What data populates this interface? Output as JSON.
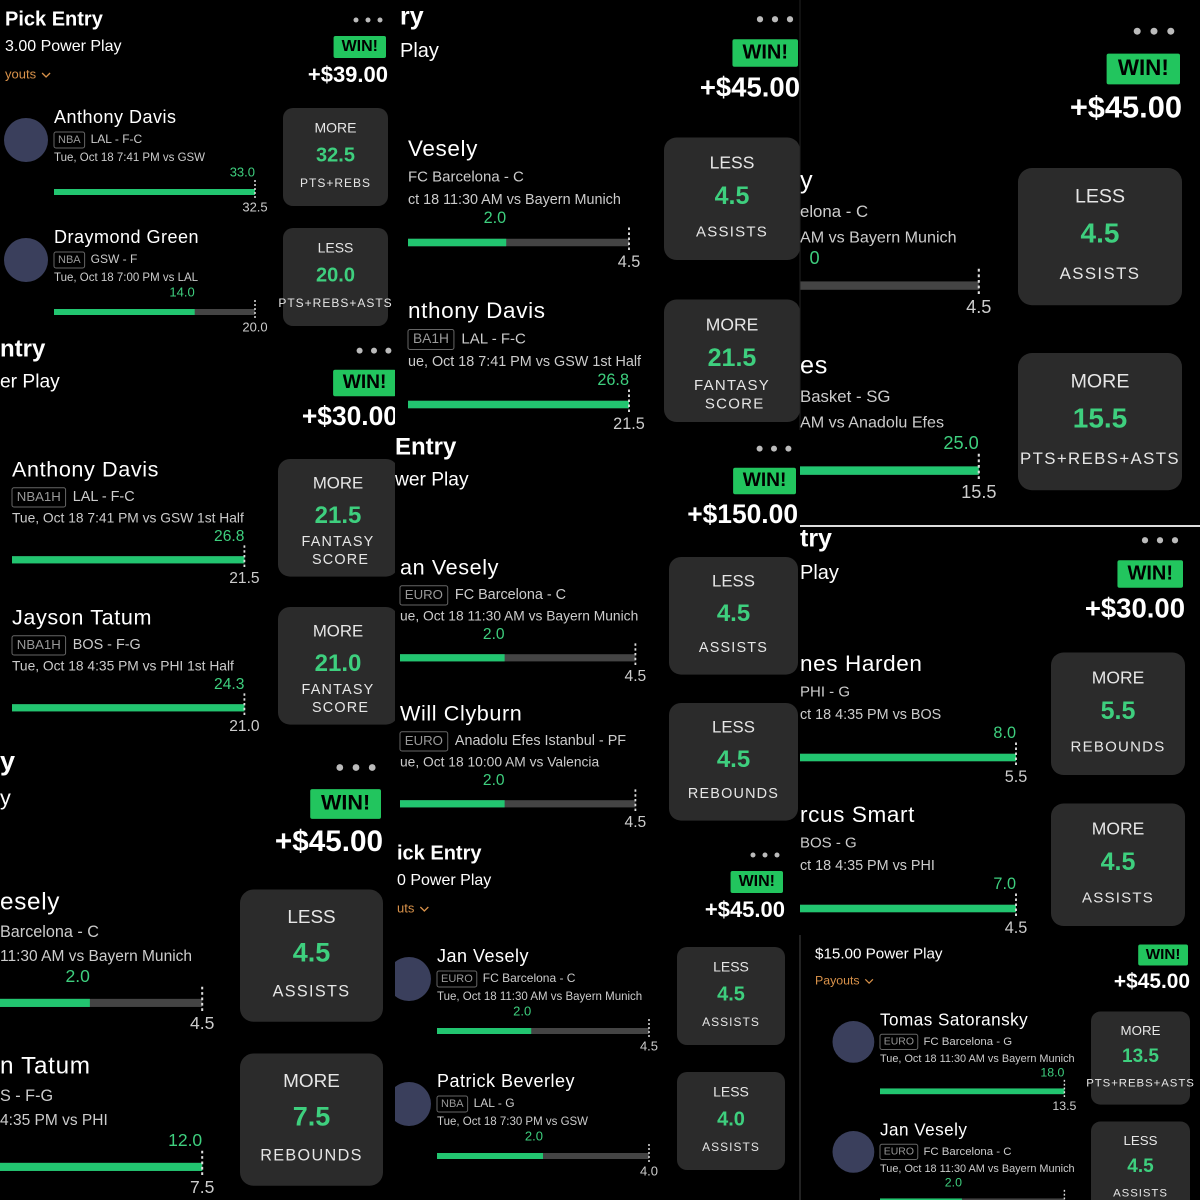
{
  "panels": [
    {
      "title": "Pick Entry",
      "subtitle": "3.00 Power Play",
      "payouts": "youts",
      "result": "WIN!",
      "amount": "+$39.00",
      "picks": [
        {
          "player": "Anthony Davis",
          "league": "NBA",
          "team": "LAL - F-C",
          "game": "Tue, Oct 18 7:41 PM vs GSW",
          "actual": 33,
          "actual_label": "33.0",
          "line": 32.5,
          "line_label": "32.5",
          "direction": "MORE",
          "stat": "PTS+REBS"
        },
        {
          "player": "Draymond Green",
          "league": "NBA",
          "team": "GSW - F",
          "game": "Tue, Oct 18 7:00 PM vs LAL",
          "actual": 14,
          "actual_label": "14.0",
          "line": 20,
          "line_label": "20.0",
          "direction": "LESS",
          "stat": "PTS+REBS+ASTS"
        }
      ]
    },
    {
      "title": "ntry",
      "subtitle": "er Play",
      "result": "WIN!",
      "amount": "+$30.00",
      "picks": [
        {
          "player": "Anthony Davis",
          "league": "NBA1H",
          "team": "LAL - F-C",
          "game": "Tue, Oct 18 7:41 PM vs GSW 1st Half",
          "actual": 26.8,
          "actual_label": "26.8",
          "line": 21.5,
          "line_label": "21.5",
          "direction": "MORE",
          "stat": "FANTASY SCORE"
        },
        {
          "player": "Jayson Tatum",
          "league": "NBA1H",
          "team": "BOS - F-G",
          "game": "Tue, Oct 18 4:35 PM vs PHI 1st Half",
          "actual": 24.3,
          "actual_label": "24.3",
          "line": 21,
          "line_label": "21.0",
          "direction": "MORE",
          "stat": "FANTASY SCORE"
        }
      ]
    },
    {
      "title": "y",
      "subtitle": "y",
      "result": "WIN!",
      "amount": "+$45.00",
      "picks": [
        {
          "player": "esely",
          "team": "Barcelona - C",
          "game": "11:30 AM vs Bayern Munich",
          "actual": 2,
          "actual_label": "2.0",
          "line": 4.5,
          "line_label": "4.5",
          "direction": "LESS",
          "stat": "ASSISTS"
        },
        {
          "player": "n Tatum",
          "team": "S - F-G",
          "game": "4:35 PM vs PHI",
          "actual": 12,
          "actual_label": "12.0",
          "line": 7.5,
          "line_label": "7.5",
          "direction": "MORE",
          "stat": "REBOUNDS"
        }
      ]
    },
    {
      "title": "ry",
      "subtitle": "Play",
      "result": "WIN!",
      "amount": "+$45.00",
      "picks": [
        {
          "player": "Vesely",
          "team": "FC Barcelona - C",
          "game": "ct 18 11:30 AM vs Bayern Munich",
          "actual": 2,
          "actual_label": "2.0",
          "line": 4.5,
          "line_label": "4.5",
          "direction": "LESS",
          "stat": "ASSISTS"
        },
        {
          "player": "nthony Davis",
          "league": "BA1H",
          "team": "LAL - F-C",
          "game": "ue, Oct 18 7:41 PM vs GSW 1st Half",
          "actual": 26.8,
          "actual_label": "26.8",
          "line": 21.5,
          "line_label": "21.5",
          "direction": "MORE",
          "stat": "FANTASY SCORE"
        }
      ]
    },
    {
      "title": "Entry",
      "subtitle": "wer Play",
      "result": "WIN!",
      "amount": "+$150.00",
      "picks": [
        {
          "player": "an Vesely",
          "league": "EURO",
          "team": "FC Barcelona - C",
          "game": "ue, Oct 18 11:30 AM vs Bayern Munich",
          "actual": 2,
          "actual_label": "2.0",
          "line": 4.5,
          "line_label": "4.5",
          "direction": "LESS",
          "stat": "ASSISTS"
        },
        {
          "player": "Will Clyburn",
          "league": "EURO",
          "team": "Anadolu Efes Istanbul - PF",
          "game": "ue, Oct 18 10:00 AM vs Valencia",
          "actual": 2,
          "actual_label": "2.0",
          "line": 4.5,
          "line_label": "4.5",
          "direction": "LESS",
          "stat": "REBOUNDS"
        }
      ]
    },
    {
      "title": "ick Entry",
      "subtitle": "0 Power Play",
      "payouts": "uts",
      "result": "WIN!",
      "amount": "+$45.00",
      "picks": [
        {
          "player": "Jan Vesely",
          "league": "EURO",
          "team": "FC Barcelona - C",
          "game": "Tue, Oct 18 11:30 AM vs Bayern Munich",
          "actual": 2,
          "actual_label": "2.0",
          "line": 4.5,
          "line_label": "4.5",
          "direction": "LESS",
          "stat": "ASSISTS"
        },
        {
          "player": "Patrick Beverley",
          "league": "NBA",
          "team": "LAL - G",
          "game": "Tue, Oct 18 7:30 PM vs GSW",
          "actual": 2,
          "actual_label": "2.0",
          "line": 4,
          "line_label": "4.0",
          "direction": "LESS",
          "stat": "ASSISTS"
        }
      ]
    },
    {
      "result": "WIN!",
      "amount": "+$45.00",
      "picks": [
        {
          "player": "y",
          "team": "elona - C",
          "game": "AM vs Bayern Munich",
          "actual_label": "0",
          "line": 4.5,
          "line_label": "4.5",
          "direction": "LESS",
          "stat": "ASSISTS"
        },
        {
          "player": "es",
          "team": "Basket - SG",
          "game": "AM vs Anadolu Efes",
          "actual": 25,
          "actual_label": "25.0",
          "line": 15.5,
          "line_label": "15.5",
          "direction": "MORE",
          "stat": "PTS+REBS+ASTS"
        }
      ]
    },
    {
      "title": "try",
      "subtitle": "Play",
      "result": "WIN!",
      "amount": "+$30.00",
      "picks": [
        {
          "player": "nes Harden",
          "team": "PHI - G",
          "game": "ct 18 4:35 PM vs BOS",
          "actual": 8,
          "actual_label": "8.0",
          "line": 5.5,
          "line_label": "5.5",
          "direction": "MORE",
          "stat": "REBOUNDS"
        },
        {
          "player": "rcus Smart",
          "team": "BOS - G",
          "game": "ct 18 4:35 PM vs PHI",
          "actual": 7,
          "actual_label": "7.0",
          "line": 4.5,
          "line_label": "4.5",
          "direction": "MORE",
          "stat": "ASSISTS"
        }
      ]
    },
    {
      "subtitle": "$15.00 Power Play",
      "payouts": "Payouts",
      "result": "WIN!",
      "amount": "+$45.00",
      "picks": [
        {
          "player": "Tomas Satoransky",
          "league": "EURO",
          "team": "FC Barcelona - G",
          "game": "Tue, Oct 18 11:30 AM vs Bayern Munich",
          "actual": 18,
          "actual_label": "18.0",
          "line": 13.5,
          "line_label": "13.5",
          "direction": "MORE",
          "stat": "PTS+REBS+ASTS"
        },
        {
          "player": "Jan Vesely",
          "league": "EURO",
          "team": "FC Barcelona - C",
          "game": "Tue, Oct 18 11:30 AM vs Bayern Munich",
          "actual": 2,
          "actual_label": "2.0",
          "line": 4.5,
          "line_label": "4.5",
          "direction": "LESS",
          "stat": "ASSISTS"
        }
      ]
    }
  ]
}
